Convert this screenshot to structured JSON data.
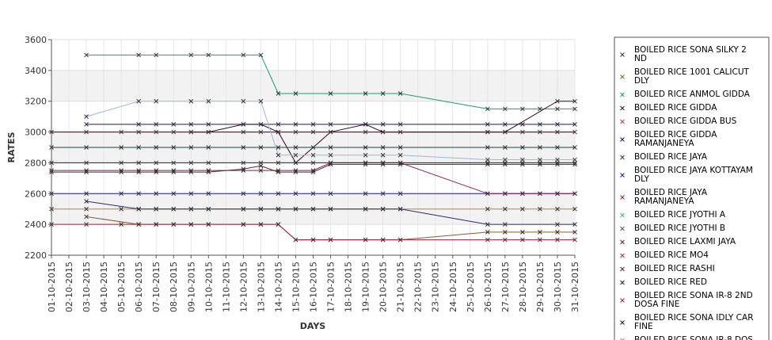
{
  "chart_data": {
    "type": "line",
    "title": "",
    "xlabel": "DAYS",
    "ylabel": "RATES",
    "ylim": [
      2200,
      3600
    ],
    "yticks": [
      2200,
      2400,
      2600,
      2800,
      3000,
      3200,
      3400,
      3600
    ],
    "x": [
      "01-10-2015",
      "02-10-2015",
      "03-10-2015",
      "04-10-2015",
      "05-10-2015",
      "06-10-2015",
      "07-10-2015",
      "08-10-2015",
      "09-10-2015",
      "10-10-2015",
      "11-10-2015",
      "12-10-2015",
      "13-10-2015",
      "14-10-2015",
      "15-10-2015",
      "16-10-2015",
      "17-10-2015",
      "18-10-2015",
      "19-10-2015",
      "20-10-2015",
      "21-10-2015",
      "22-10-2015",
      "23-10-2015",
      "24-10-2015",
      "25-10-2015",
      "26-10-2015",
      "27-10-2015",
      "28-10-2015",
      "29-10-2015",
      "30-10-2015",
      "31-10-2015"
    ],
    "grid": true,
    "alternating_bands": true,
    "legend_position": "right",
    "series": [
      {
        "name": "BOILED RICE SONA SILKY 2 ND",
        "color": "#333333",
        "values": [
          null,
          null,
          null,
          null,
          null,
          null,
          null,
          null,
          null,
          null,
          null,
          null,
          null,
          null,
          null,
          null,
          null,
          null,
          null,
          null,
          null,
          null,
          null,
          null,
          null,
          null,
          null,
          null,
          null,
          null,
          null
        ]
      },
      {
        "name": "BOILED RICE 1001 CALICUT DLY",
        "color": "#8b5a2b",
        "values": [
          null,
          null,
          2450,
          null,
          null,
          2400,
          2400,
          2400,
          2400,
          2400,
          null,
          2400,
          2400,
          2400,
          2300,
          2300,
          2300,
          null,
          2300,
          2300,
          2300,
          null,
          null,
          null,
          null,
          2350,
          2350,
          2350,
          2350,
          2350,
          2350
        ]
      },
      {
        "name": "BOILED RICE ANMOL GIDDA",
        "color": "#1a9a7a",
        "values": [
          null,
          null,
          3500,
          null,
          null,
          3500,
          3500,
          null,
          3500,
          3500,
          null,
          3500,
          3500,
          3250,
          3250,
          null,
          3250,
          null,
          3250,
          3250,
          3250,
          null,
          null,
          null,
          null,
          3150,
          3150,
          3150,
          3150,
          3150,
          3150
        ]
      },
      {
        "name": "BOILED RICE GIDDA",
        "color": "#3a0a1a",
        "values": [
          null,
          null,
          null,
          null,
          null,
          null,
          null,
          null,
          3000,
          3000,
          null,
          3050,
          3050,
          3000,
          2800,
          null,
          3000,
          null,
          3050,
          3000,
          null,
          null,
          null,
          null,
          null,
          3000,
          3000,
          null,
          null,
          3200,
          3200
        ]
      },
      {
        "name": "BOILED RICE GIDDA BUS",
        "color": "#c0392b",
        "values": [
          null,
          null,
          null,
          null,
          null,
          null,
          null,
          null,
          null,
          null,
          null,
          null,
          null,
          null,
          null,
          null,
          null,
          null,
          null,
          null,
          null,
          null,
          null,
          null,
          null,
          null,
          null,
          null,
          null,
          null,
          null
        ]
      },
      {
        "name": "BOILED RICE GIDDA RAMANJANEYA",
        "color": "#1a1a4a",
        "values": [
          null,
          null,
          3050,
          null,
          null,
          3050,
          3050,
          3050,
          3050,
          3050,
          null,
          3050,
          3050,
          3050,
          3050,
          3050,
          3050,
          null,
          3050,
          3050,
          3050,
          null,
          null,
          null,
          null,
          3050,
          3050,
          3050,
          3050,
          3050,
          3050
        ]
      },
      {
        "name": "BOILED RICE JAYA",
        "color": "#1f3f4f",
        "values": [
          2900,
          null,
          2900,
          null,
          2900,
          2900,
          2900,
          2900,
          2900,
          2900,
          null,
          2900,
          2900,
          2900,
          2900,
          2900,
          2900,
          null,
          2900,
          2900,
          2900,
          null,
          null,
          null,
          null,
          2900,
          2900,
          2900,
          2900,
          2900,
          2900
        ]
      },
      {
        "name": "BOILED RICE JAYA KOTTAYAM DLY",
        "color": "#1a1aaa",
        "values": [
          2600,
          null,
          2600,
          null,
          2600,
          2600,
          2600,
          2600,
          2600,
          2600,
          null,
          2600,
          2600,
          2600,
          2600,
          2600,
          2600,
          null,
          2600,
          2600,
          2600,
          null,
          null,
          null,
          null,
          2600,
          2600,
          2600,
          2600,
          2600,
          2600
        ]
      },
      {
        "name": "BOILED RICE JAYA RAMANJANEYA",
        "color": "#8b1a4a",
        "values": [
          2750,
          null,
          2750,
          null,
          2750,
          2750,
          2750,
          2750,
          2750,
          2750,
          null,
          2750,
          2750,
          2750,
          2750,
          2750,
          2800,
          null,
          2800,
          2800,
          2800,
          null,
          null,
          null,
          null,
          2600,
          2600,
          2600,
          2600,
          2600,
          2600
        ]
      },
      {
        "name": "BOILED RICE JYOTHI A",
        "color": "#3aaa8a",
        "values": [
          null,
          null,
          null,
          null,
          null,
          null,
          null,
          null,
          null,
          null,
          null,
          null,
          null,
          null,
          null,
          null,
          null,
          null,
          null,
          null,
          null,
          null,
          null,
          null,
          null,
          null,
          null,
          null,
          null,
          null,
          null
        ]
      },
      {
        "name": "BOILED RICE JYOTHI B",
        "color": "#555555",
        "values": [
          null,
          null,
          null,
          null,
          null,
          null,
          null,
          null,
          null,
          null,
          null,
          null,
          null,
          null,
          null,
          null,
          null,
          null,
          null,
          null,
          null,
          null,
          null,
          null,
          null,
          null,
          null,
          null,
          null,
          null,
          null
        ]
      },
      {
        "name": "BOILED RICE LAXMI JAYA",
        "color": "#5a2a1a",
        "values": [
          null,
          null,
          null,
          null,
          null,
          null,
          null,
          null,
          null,
          null,
          null,
          null,
          null,
          null,
          null,
          null,
          null,
          null,
          null,
          null,
          null,
          null,
          null,
          null,
          null,
          null,
          null,
          null,
          null,
          null,
          null
        ]
      },
      {
        "name": "BOILED RICE MO4",
        "color": "#aa2a5a",
        "values": [
          null,
          null,
          null,
          null,
          null,
          null,
          null,
          null,
          null,
          null,
          null,
          null,
          null,
          null,
          null,
          null,
          null,
          null,
          null,
          null,
          null,
          null,
          null,
          null,
          null,
          null,
          null,
          null,
          null,
          null,
          null
        ]
      },
      {
        "name": "BOILED RICE RASHI",
        "color": "#4a2a2a",
        "values": [
          2740,
          null,
          2740,
          null,
          2740,
          2740,
          2740,
          2740,
          2740,
          2740,
          null,
          2760,
          2780,
          2740,
          2740,
          2740,
          2790,
          null,
          2790,
          2790,
          2790,
          null,
          null,
          null,
          null,
          2790,
          2790,
          2790,
          2790,
          2790,
          2790
        ]
      },
      {
        "name": "BOILED RICE RED",
        "color": "#222222",
        "values": [
          2800,
          null,
          2800,
          null,
          2800,
          2800,
          2800,
          2800,
          2800,
          2800,
          null,
          2800,
          2800,
          2800,
          2800,
          2800,
          2800,
          null,
          2800,
          2800,
          2800,
          null,
          null,
          null,
          null,
          2800,
          2800,
          2800,
          2800,
          2800,
          2800
        ]
      },
      {
        "name": "BOILED RICE SONA  IR-8 2ND DOSA FINE",
        "color": "#aa1a3a",
        "values": [
          2400,
          null,
          2400,
          null,
          2400,
          2400,
          2400,
          2400,
          2400,
          2400,
          null,
          2400,
          2400,
          2400,
          2300,
          2300,
          2300,
          null,
          2300,
          2300,
          2300,
          null,
          null,
          null,
          null,
          2300,
          2300,
          2300,
          2300,
          2300,
          2300
        ]
      },
      {
        "name": "BOILED RICE SONA IDLY CAR FINE",
        "color": "#2a0a1a",
        "values": [
          3000,
          null,
          3000,
          null,
          3000,
          3000,
          3000,
          3000,
          3000,
          3000,
          null,
          3000,
          3000,
          3000,
          3000,
          3000,
          3000,
          null,
          3000,
          3000,
          3000,
          null,
          null,
          null,
          null,
          3000,
          3000,
          3000,
          3000,
          3000,
          3000
        ]
      },
      {
        "name": "BOILED RICE SONA IR-8 DOS",
        "color": "#c87a2a",
        "values": [
          2500,
          null,
          2500,
          null,
          2500,
          2500,
          2500,
          2500,
          2500,
          2500,
          null,
          2500,
          2500,
          2500,
          2500,
          2500,
          2500,
          null,
          2500,
          2500,
          2500,
          null,
          null,
          null,
          null,
          2500,
          2500,
          2500,
          2500,
          2500,
          2500
        ]
      },
      {
        "name": "",
        "color": "#9ab8d8",
        "values": [
          null,
          null,
          3100,
          null,
          null,
          3200,
          3200,
          null,
          3200,
          3200,
          null,
          3200,
          3200,
          2850,
          2850,
          2850,
          2850,
          null,
          2850,
          2850,
          2850,
          null,
          null,
          null,
          null,
          2820,
          2820,
          2820,
          2820,
          2820,
          2820
        ]
      },
      {
        "name": "",
        "color": "#2a2a6a",
        "values": [
          null,
          null,
          2550,
          null,
          null,
          2500,
          2500,
          2500,
          2500,
          2500,
          null,
          2500,
          2500,
          2500,
          2500,
          2500,
          2500,
          null,
          2500,
          2500,
          2500,
          null,
          null,
          null,
          null,
          2400,
          2400,
          null,
          null,
          2400,
          2400
        ]
      }
    ]
  }
}
